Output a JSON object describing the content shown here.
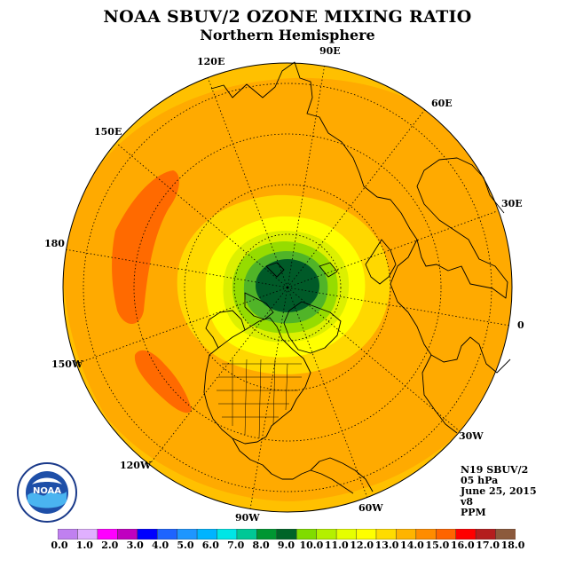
{
  "header": {
    "title": "NOAA SBUV/2 OZONE MIXING RATIO",
    "subtitle": "Northern Hemisphere"
  },
  "longitude_labels": [
    {
      "id": "lon-90e",
      "text": "90E"
    },
    {
      "id": "lon-60e",
      "text": "60E"
    },
    {
      "id": "lon-30e",
      "text": "30E"
    },
    {
      "id": "lon-0",
      "text": "0"
    },
    {
      "id": "lon-30w",
      "text": "30W"
    },
    {
      "id": "lon-60w",
      "text": "60W"
    },
    {
      "id": "lon-90w",
      "text": "90W"
    },
    {
      "id": "lon-120w",
      "text": "120W"
    },
    {
      "id": "lon-150w",
      "text": "150W"
    },
    {
      "id": "lon-180",
      "text": "180"
    },
    {
      "id": "lon-150e",
      "text": "150E"
    },
    {
      "id": "lon-120e",
      "text": "120E"
    }
  ],
  "info": {
    "instrument": "N19 SBUV/2",
    "level": "05 hPa",
    "date": "June 25, 2015",
    "version": "v8",
    "units": "PPM"
  },
  "logo": {
    "text": "NOAA"
  },
  "colorbar": {
    "colors": [
      "#c080f0",
      "#e0b0ff",
      "#ff00ff",
      "#c000c0",
      "#0000ff",
      "#1e64ff",
      "#1e96ff",
      "#00b4ff",
      "#00e6e6",
      "#00c896",
      "#009632",
      "#006428",
      "#80dc00",
      "#b4f000",
      "#e6ff00",
      "#ffff00",
      "#ffdc00",
      "#ffb400",
      "#ff8c00",
      "#ff6400",
      "#ff0000",
      "#b41e1e",
      "#8c5a3c"
    ],
    "labels": [
      "0.0",
      "1.0",
      "2.0",
      "3.0",
      "4.0",
      "5.0",
      "6.0",
      "7.0",
      "8.0",
      "9.0",
      "10.0",
      "11.0",
      "12.0",
      "13.0",
      "14.0",
      "15.0",
      "16.0",
      "17.0",
      "18.0"
    ]
  }
}
